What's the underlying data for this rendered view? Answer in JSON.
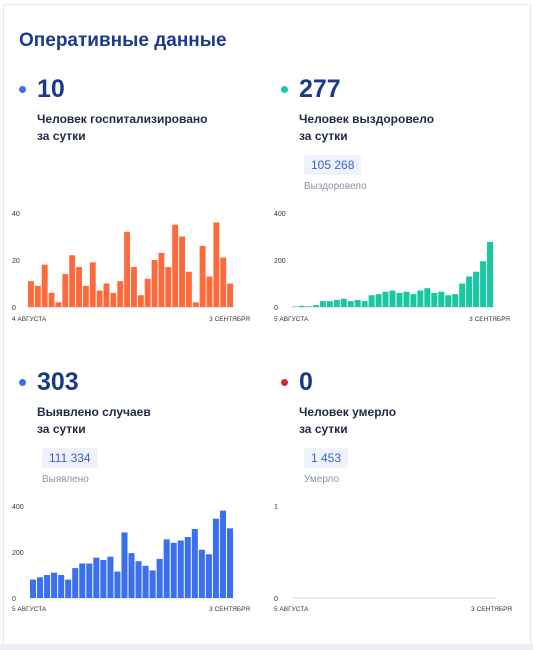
{
  "title": "Оперативные данные",
  "cards": [
    {
      "value": "10",
      "desc_line1": "Человек госпитализировано",
      "desc_line2": "за сутки",
      "total": "",
      "total_label": "",
      "dot_color": "#3a6ff0",
      "bar_color": "#ff6a3d"
    },
    {
      "value": "277",
      "desc_line1": "Человек выздоровело",
      "desc_line2": "за сутки",
      "total": "105 268",
      "total_label": "Выздоровело",
      "dot_color": "#17c8a0",
      "bar_color": "#17c8a0"
    },
    {
      "value": "303",
      "desc_line1": "Выявлено случаев",
      "desc_line2": "за сутки",
      "total": "111 334",
      "total_label": "Выявлено",
      "dot_color": "#3a6ff0",
      "bar_color": "#3a6ff0"
    },
    {
      "value": "0",
      "desc_line1": "Человек умерло",
      "desc_line2": "за сутки",
      "total": "1 453",
      "total_label": "Умерло",
      "dot_color": "#d42a2a",
      "bar_color": "#d42a2a"
    }
  ],
  "chart_data": [
    {
      "type": "bar",
      "x_start_label": "4 АВГУСТА",
      "x_end_label": "3 СЕНТЯБРЯ",
      "yticks": [
        0,
        20,
        40
      ],
      "ylim": [
        0,
        40
      ],
      "grid": false,
      "values": [
        11,
        9,
        18,
        6,
        2,
        14,
        22,
        17,
        9,
        19,
        7,
        10,
        6,
        11,
        32,
        17,
        5,
        12,
        20,
        23,
        17,
        35,
        30,
        15,
        2,
        26,
        13,
        36,
        21,
        10
      ]
    },
    {
      "type": "bar",
      "x_start_label": "5 АВГУСТА",
      "x_end_label": "3 СЕНТЯБРЯ",
      "yticks": [
        0,
        200,
        400
      ],
      "ylim": [
        0,
        400
      ],
      "grid": false,
      "values": [
        2,
        5,
        3,
        8,
        25,
        25,
        30,
        35,
        25,
        30,
        25,
        50,
        55,
        65,
        70,
        60,
        65,
        55,
        70,
        80,
        60,
        65,
        50,
        55,
        100,
        130,
        150,
        195,
        277
      ]
    },
    {
      "type": "bar",
      "x_start_label": "5 АВГУСТА",
      "x_end_label": "3 СЕНТЯБРЯ",
      "yticks": [
        0,
        200,
        400
      ],
      "ylim": [
        0,
        400
      ],
      "grid": false,
      "values": [
        80,
        90,
        100,
        110,
        100,
        80,
        130,
        150,
        150,
        175,
        165,
        180,
        115,
        285,
        195,
        160,
        140,
        120,
        170,
        255,
        240,
        250,
        265,
        300,
        210,
        190,
        345,
        380,
        303
      ]
    },
    {
      "type": "bar",
      "x_start_label": "5 АВГУСТА",
      "x_end_label": "3 СЕНТЯБРЯ",
      "yticks": [
        0,
        1
      ],
      "ylim": [
        0,
        1
      ],
      "grid": false,
      "values": [
        0,
        0,
        0,
        0,
        0,
        0,
        0,
        0,
        0,
        0,
        0,
        0,
        0,
        0,
        0,
        0,
        0,
        0,
        0,
        0,
        0,
        0,
        0,
        0,
        0,
        0,
        0,
        0,
        0
      ]
    }
  ]
}
